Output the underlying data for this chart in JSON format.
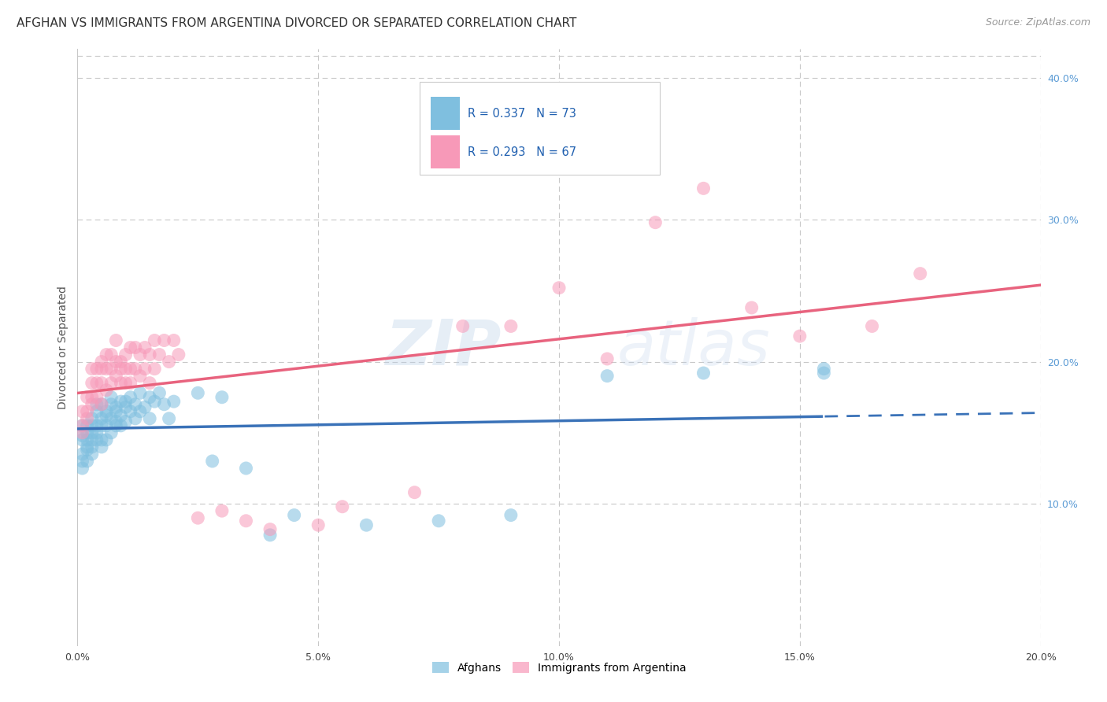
{
  "title": "AFGHAN VS IMMIGRANTS FROM ARGENTINA DIVORCED OR SEPARATED CORRELATION CHART",
  "source": "Source: ZipAtlas.com",
  "ylabel": "Divorced or Separated",
  "xlim": [
    0.0,
    0.2
  ],
  "ylim": [
    0.0,
    0.42
  ],
  "legend_label1": "Afghans",
  "legend_label2": "Immigrants from Argentina",
  "r1": 0.337,
  "n1": 73,
  "r2": 0.293,
  "n2": 67,
  "color_blue": "#7fbfdf",
  "color_pink": "#f799b8",
  "line_color_blue": "#3a72b8",
  "line_color_pink": "#e8637e",
  "watermark_zip": "ZIP",
  "watermark_atlas": "atlas",
  "background_color": "#ffffff",
  "grid_color": "#c8c8c8",
  "title_fontsize": 11,
  "source_fontsize": 9,
  "afghans_x": [
    0.001,
    0.001,
    0.001,
    0.001,
    0.001,
    0.001,
    0.002,
    0.002,
    0.002,
    0.002,
    0.002,
    0.002,
    0.003,
    0.003,
    0.003,
    0.003,
    0.003,
    0.003,
    0.004,
    0.004,
    0.004,
    0.004,
    0.004,
    0.005,
    0.005,
    0.005,
    0.005,
    0.005,
    0.006,
    0.006,
    0.006,
    0.006,
    0.007,
    0.007,
    0.007,
    0.007,
    0.008,
    0.008,
    0.008,
    0.008,
    0.009,
    0.009,
    0.009,
    0.01,
    0.01,
    0.01,
    0.011,
    0.011,
    0.012,
    0.012,
    0.013,
    0.013,
    0.014,
    0.015,
    0.015,
    0.016,
    0.017,
    0.018,
    0.019,
    0.02,
    0.025,
    0.028,
    0.03,
    0.035,
    0.04,
    0.045,
    0.06,
    0.075,
    0.09,
    0.11,
    0.13,
    0.155,
    0.155
  ],
  "afghans_y": [
    0.13,
    0.145,
    0.155,
    0.135,
    0.125,
    0.148,
    0.14,
    0.15,
    0.13,
    0.145,
    0.138,
    0.155,
    0.145,
    0.155,
    0.14,
    0.16,
    0.135,
    0.15,
    0.155,
    0.165,
    0.145,
    0.15,
    0.17,
    0.16,
    0.155,
    0.145,
    0.17,
    0.14,
    0.162,
    0.155,
    0.165,
    0.145,
    0.17,
    0.16,
    0.175,
    0.15,
    0.168,
    0.158,
    0.165,
    0.155,
    0.172,
    0.162,
    0.155,
    0.168,
    0.158,
    0.172,
    0.175,
    0.165,
    0.17,
    0.16,
    0.178,
    0.165,
    0.168,
    0.175,
    0.16,
    0.172,
    0.178,
    0.17,
    0.16,
    0.172,
    0.178,
    0.13,
    0.175,
    0.125,
    0.078,
    0.092,
    0.085,
    0.088,
    0.092,
    0.19,
    0.192,
    0.192,
    0.195
  ],
  "argentina_x": [
    0.001,
    0.001,
    0.001,
    0.002,
    0.002,
    0.002,
    0.003,
    0.003,
    0.003,
    0.003,
    0.004,
    0.004,
    0.004,
    0.005,
    0.005,
    0.005,
    0.005,
    0.006,
    0.006,
    0.006,
    0.007,
    0.007,
    0.007,
    0.008,
    0.008,
    0.008,
    0.009,
    0.009,
    0.009,
    0.01,
    0.01,
    0.01,
    0.011,
    0.011,
    0.011,
    0.012,
    0.012,
    0.013,
    0.013,
    0.014,
    0.014,
    0.015,
    0.015,
    0.016,
    0.016,
    0.017,
    0.018,
    0.019,
    0.02,
    0.021,
    0.025,
    0.03,
    0.035,
    0.04,
    0.05,
    0.055,
    0.07,
    0.08,
    0.09,
    0.1,
    0.11,
    0.12,
    0.13,
    0.14,
    0.15,
    0.165,
    0.175
  ],
  "argentina_y": [
    0.15,
    0.155,
    0.165,
    0.165,
    0.175,
    0.16,
    0.175,
    0.185,
    0.17,
    0.195,
    0.185,
    0.195,
    0.175,
    0.185,
    0.2,
    0.17,
    0.195,
    0.195,
    0.205,
    0.18,
    0.195,
    0.205,
    0.185,
    0.2,
    0.19,
    0.215,
    0.2,
    0.195,
    0.185,
    0.205,
    0.195,
    0.185,
    0.21,
    0.195,
    0.185,
    0.21,
    0.195,
    0.205,
    0.19,
    0.21,
    0.195,
    0.205,
    0.185,
    0.215,
    0.195,
    0.205,
    0.215,
    0.2,
    0.215,
    0.205,
    0.09,
    0.095,
    0.088,
    0.082,
    0.085,
    0.098,
    0.108,
    0.225,
    0.225,
    0.252,
    0.202,
    0.298,
    0.322,
    0.238,
    0.218,
    0.225,
    0.262
  ]
}
